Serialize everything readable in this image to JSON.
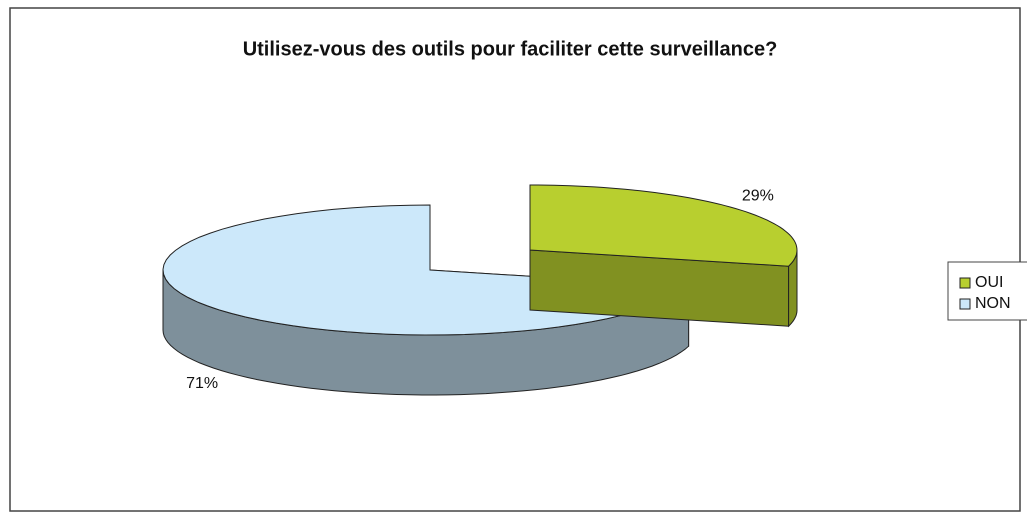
{
  "chart_data": {
    "type": "pie3d",
    "title": "Utilisez-vous des outils pour faciliter cette surveillance?",
    "categories": [
      "OUI",
      "NON"
    ],
    "values": [
      29,
      71
    ],
    "value_labels": [
      "29%",
      "71%"
    ],
    "colors": [
      "#b8cf2f",
      "#cce8fa"
    ],
    "legend": "right"
  }
}
